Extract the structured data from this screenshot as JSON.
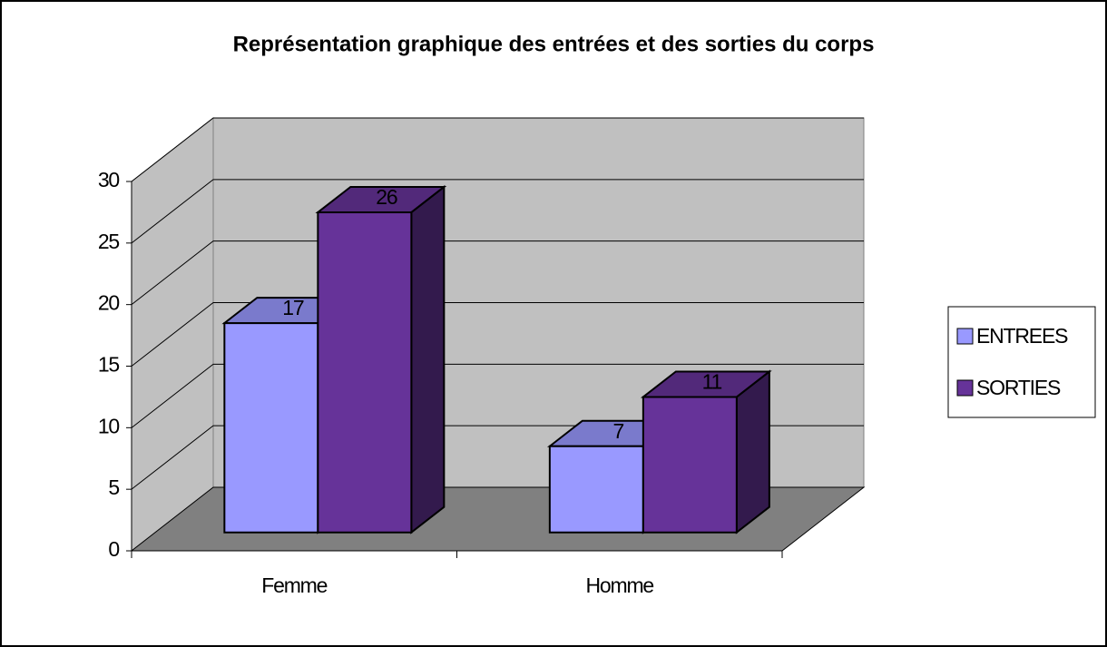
{
  "chart_data": {
    "type": "bar",
    "title": "Représentation graphique des entrées et des sorties du corps",
    "categories": [
      "Femme",
      "Homme"
    ],
    "series": [
      {
        "name": "ENTREES",
        "color": "#9999ff",
        "values": [
          17,
          7
        ]
      },
      {
        "name": "SORTIES",
        "color": "#663399",
        "values": [
          26,
          11
        ]
      }
    ],
    "ylim": [
      0,
      30
    ],
    "yticks": [
      0,
      5,
      10,
      15,
      20,
      25,
      30
    ],
    "grid": true,
    "legend": "right"
  }
}
